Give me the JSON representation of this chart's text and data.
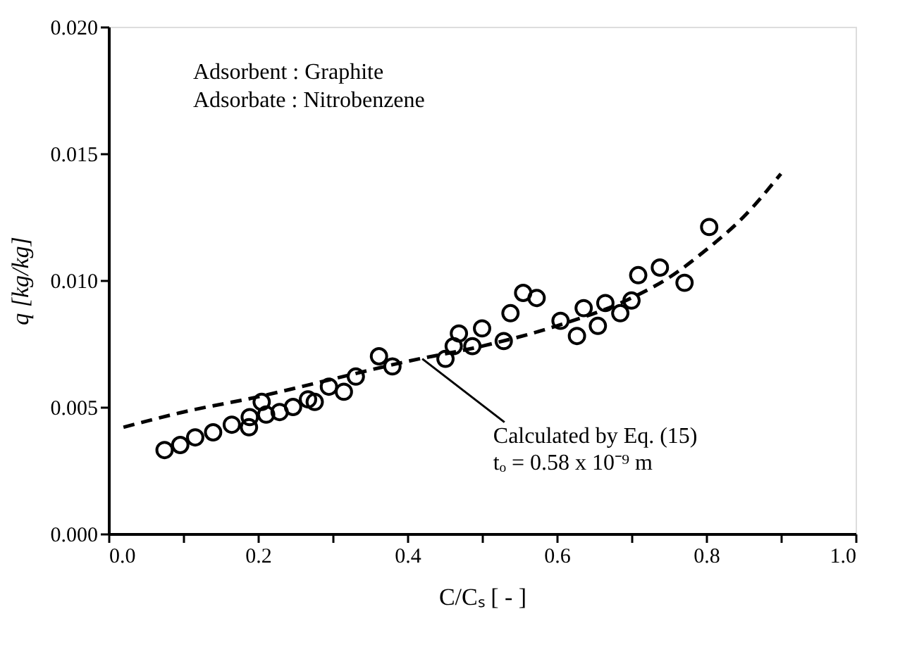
{
  "chart_data": {
    "type": "scatter",
    "xlabel": "C/Cₛ   [ - ]",
    "ylabel": "q   [kg/kg]",
    "xlim": [
      0.0,
      1.0
    ],
    "xticks": [
      {
        "value": 0.0,
        "label": "0.0"
      },
      {
        "value": 0.1,
        "label": null
      },
      {
        "value": 0.2,
        "label": "0.2"
      },
      {
        "value": 0.3,
        "label": null
      },
      {
        "value": 0.4,
        "label": "0.4"
      },
      {
        "value": 0.5,
        "label": null
      },
      {
        "value": 0.6,
        "label": "0.6"
      },
      {
        "value": 0.7,
        "label": null
      },
      {
        "value": 0.8,
        "label": "0.8"
      },
      {
        "value": 0.9,
        "label": null
      },
      {
        "value": 1.0,
        "label": "1.0"
      }
    ],
    "ylim": [
      0.0,
      0.02
    ],
    "yticks": [
      {
        "value": 0.0,
        "label": "0.000"
      },
      {
        "value": 0.005,
        "label": "0.005"
      },
      {
        "value": 0.01,
        "label": "0.010"
      },
      {
        "value": 0.015,
        "label": "0.015"
      },
      {
        "value": 0.02,
        "label": "0.020"
      }
    ],
    "grid": false,
    "series": [
      {
        "marker": "circle",
        "color": "#000000",
        "x": [
          0.075,
          0.096,
          0.116,
          0.14,
          0.165,
          0.188,
          0.189,
          0.205,
          0.211,
          0.229,
          0.247,
          0.267,
          0.276,
          0.295,
          0.315,
          0.331,
          0.362,
          0.38,
          0.451,
          0.462,
          0.469,
          0.487,
          0.5,
          0.529,
          0.538,
          0.555,
          0.573,
          0.605,
          0.627,
          0.636,
          0.655,
          0.665,
          0.685,
          0.7,
          0.709,
          0.738,
          0.771,
          0.804
        ],
        "values": [
          0.0033,
          0.0035,
          0.0038,
          0.004,
          0.0043,
          0.0042,
          0.0046,
          0.0052,
          0.0047,
          0.0048,
          0.005,
          0.0053,
          0.0052,
          0.0058,
          0.0056,
          0.0062,
          0.007,
          0.0066,
          0.0069,
          0.0074,
          0.0079,
          0.0074,
          0.0081,
          0.0076,
          0.0087,
          0.0095,
          0.0093,
          0.0084,
          0.0078,
          0.0089,
          0.0082,
          0.0091,
          0.0087,
          0.0092,
          0.0102,
          0.0105,
          0.0099,
          0.0121
        ]
      },
      {
        "type": "line",
        "line_style": "dashed",
        "marker": "none",
        "color": "#000000",
        "x": [
          0.02,
          0.1,
          0.2,
          0.3,
          0.4,
          0.5,
          0.6,
          0.7,
          0.75,
          0.8,
          0.85,
          0.9
        ],
        "values": [
          0.0042,
          0.0048,
          0.0054,
          0.0061,
          0.0068,
          0.0074,
          0.0082,
          0.0093,
          0.0101,
          0.0112,
          0.0125,
          0.0142
        ]
      }
    ],
    "annotations": [
      {
        "text": "Adsorbent   :  Graphite"
      },
      {
        "text": "Adsorbate   :  Nitrobenzene"
      },
      {
        "text": "Calculated by Eq. (15)\ntₒ = 0.58 x 10⁻⁹ m",
        "x": 0.42,
        "y": 0.0069
      }
    ]
  }
}
